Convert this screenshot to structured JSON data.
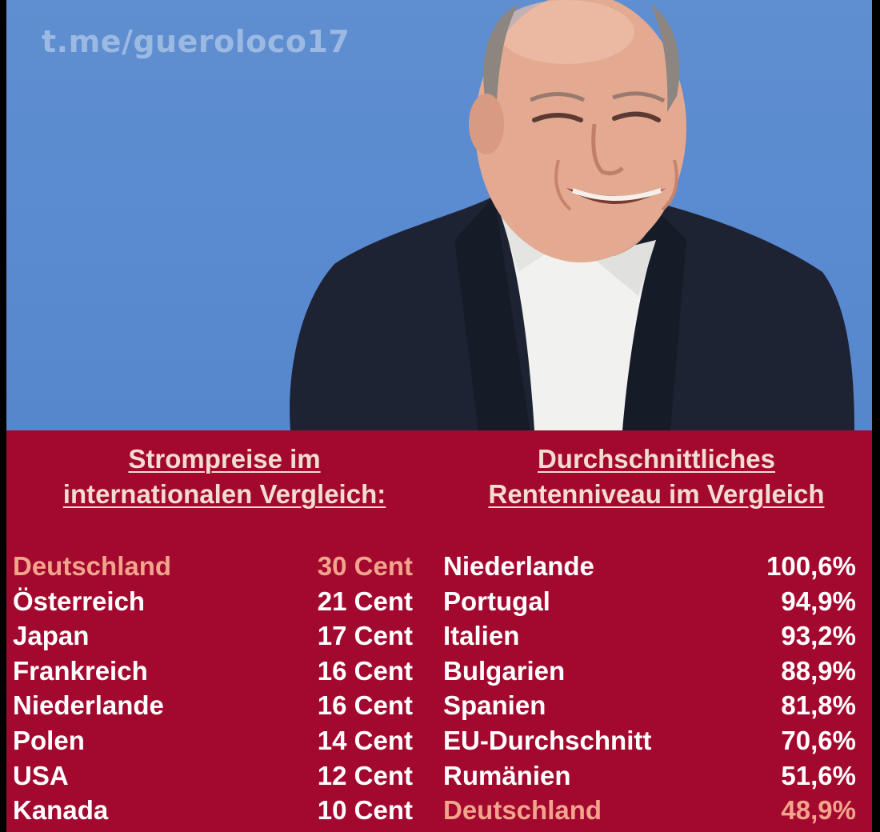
{
  "watermark": "t.me/gueroloco17",
  "colors": {
    "background_blue": "#5a8ad0",
    "panel_red": "#a3092f",
    "highlight": "#f2a48c",
    "text": "#ffffff"
  },
  "left_table": {
    "title_line1": "Strompreise im",
    "title_line2": "internationalen Vergleich:",
    "rows": [
      {
        "country": "Deutschland",
        "value": "30 Cent",
        "highlight": true
      },
      {
        "country": "Österreich",
        "value": "21 Cent",
        "highlight": false
      },
      {
        "country": "Japan",
        "value": "17 Cent",
        "highlight": false
      },
      {
        "country": "Frankreich",
        "value": "16 Cent",
        "highlight": false
      },
      {
        "country": "Niederlande",
        "value": "16 Cent",
        "highlight": false
      },
      {
        "country": "Polen",
        "value": "14 Cent",
        "highlight": false
      },
      {
        "country": "USA",
        "value": "12 Cent",
        "highlight": false
      },
      {
        "country": "Kanada",
        "value": "10 Cent",
        "highlight": false
      }
    ]
  },
  "right_table": {
    "title_line1": "Durchschnittliches",
    "title_line2": "Rentenniveau im Vergleich",
    "rows": [
      {
        "country": "Niederlande",
        "value": "100,6%",
        "highlight": false
      },
      {
        "country": "Portugal",
        "value": "94,9%",
        "highlight": false
      },
      {
        "country": "Italien",
        "value": "93,2%",
        "highlight": false
      },
      {
        "country": "Bulgarien",
        "value": "88,9%",
        "highlight": false
      },
      {
        "country": "Spanien",
        "value": "81,8%",
        "highlight": false
      },
      {
        "country": "EU-Durchschnitt",
        "value": "70,6%",
        "highlight": false
      },
      {
        "country": "Rumänien",
        "value": "51,6%",
        "highlight": false
      },
      {
        "country": "Deutschland",
        "value": "48,9%",
        "highlight": true
      }
    ]
  }
}
